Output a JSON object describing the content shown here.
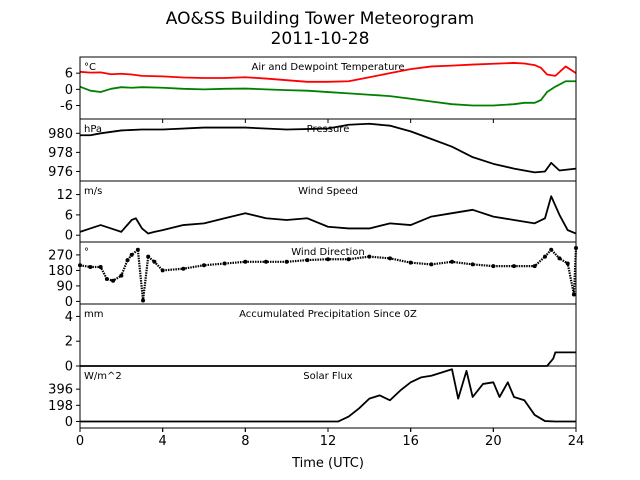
{
  "figure": {
    "title": "AO&SS Building Tower Meteorogram",
    "date": "2011-10-28",
    "xlabel": "Time (UTC)"
  },
  "chart_data": [
    {
      "type": "line",
      "title": "Air and Dewpoint Temperature",
      "unit": "°C",
      "xlim": [
        0,
        24
      ],
      "ylim": [
        -11,
        12
      ],
      "yticks": [
        -6,
        0,
        6
      ],
      "xticks": [
        0,
        4,
        8,
        12,
        16,
        20,
        24
      ],
      "x": [
        0,
        0.5,
        1,
        1.5,
        2,
        2.5,
        3,
        4,
        5,
        6,
        7,
        8,
        9,
        10,
        11,
        12,
        13,
        14,
        15,
        16,
        17,
        18,
        19,
        20,
        21,
        21.5,
        22,
        22.3,
        22.6,
        23,
        23.5,
        24
      ],
      "series": [
        {
          "name": "Air Temperature",
          "color": "#ff0000",
          "values": [
            6.5,
            6.2,
            6.3,
            5.6,
            5.8,
            5.5,
            5.0,
            4.8,
            4.4,
            4.2,
            4.2,
            4.5,
            4.0,
            3.4,
            2.8,
            2.8,
            3.0,
            4.5,
            6.0,
            7.5,
            8.5,
            8.8,
            9.2,
            9.5,
            9.8,
            9.6,
            9.0,
            8.0,
            5.5,
            5.0,
            8.5,
            6.0
          ]
        },
        {
          "name": "Dewpoint Temperature",
          "color": "#008000",
          "values": [
            1.0,
            -0.5,
            -1.0,
            0.2,
            0.8,
            0.6,
            0.8,
            0.6,
            0.2,
            0.0,
            0.2,
            0.3,
            0.0,
            -0.3,
            -0.5,
            -1.0,
            -1.5,
            -2.0,
            -2.5,
            -3.5,
            -4.5,
            -5.5,
            -6.0,
            -6.0,
            -5.5,
            -5.0,
            -5.0,
            -4.0,
            -1.0,
            1.0,
            3.0,
            3.0
          ]
        }
      ]
    },
    {
      "type": "line",
      "title": "Pressure",
      "unit": "hPa",
      "xlim": [
        0,
        24
      ],
      "ylim": [
        975,
        981.5
      ],
      "yticks": [
        976,
        978,
        980
      ],
      "x": [
        0,
        0.5,
        1,
        2,
        3,
        4,
        6,
        8,
        10,
        12,
        13,
        14,
        15,
        16,
        17,
        18,
        19,
        20,
        21,
        22,
        22.5,
        22.8,
        23.2,
        24
      ],
      "series": [
        {
          "name": "Pressure",
          "color": "#000000",
          "values": [
            979.8,
            979.8,
            980.0,
            980.3,
            980.4,
            980.4,
            980.6,
            980.6,
            980.4,
            980.5,
            980.9,
            981.0,
            980.8,
            980.2,
            979.4,
            978.6,
            977.5,
            976.8,
            976.3,
            975.9,
            976.0,
            976.9,
            976.1,
            976.3
          ]
        }
      ]
    },
    {
      "type": "line",
      "title": "Wind Speed",
      "unit": "m/s",
      "xlim": [
        0,
        24
      ],
      "ylim": [
        -2,
        16
      ],
      "yticks": [
        0,
        6,
        12
      ],
      "x": [
        0,
        0.5,
        1,
        1.5,
        2,
        2.5,
        2.7,
        3,
        3.3,
        3.6,
        4,
        5,
        6,
        7,
        8,
        9,
        10,
        11,
        12,
        13,
        14,
        15,
        16,
        17,
        18,
        19,
        20,
        21,
        22,
        22.5,
        22.8,
        23.2,
        23.6,
        24
      ],
      "series": [
        {
          "name": "Wind Speed",
          "color": "#000000",
          "values": [
            1.0,
            2.0,
            3.0,
            2.0,
            1.0,
            4.5,
            5.0,
            2.0,
            0.5,
            1.0,
            1.5,
            3.0,
            3.5,
            5.0,
            6.5,
            5.0,
            4.5,
            5.0,
            2.5,
            2.0,
            2.0,
            3.5,
            3.0,
            5.5,
            6.5,
            7.5,
            5.5,
            4.5,
            3.5,
            5.0,
            11.5,
            6.0,
            1.5,
            0.5
          ]
        }
      ]
    },
    {
      "type": "scatter",
      "title": "Wind Direction",
      "unit": "°",
      "xlim": [
        0,
        24
      ],
      "ylim": [
        -15,
        345
      ],
      "yticks": [
        0,
        90,
        180,
        270
      ],
      "x": [
        0,
        0.5,
        1,
        1.3,
        1.6,
        2,
        2.3,
        2.5,
        2.8,
        3.05,
        3.3,
        3.6,
        4,
        5,
        6,
        7,
        8,
        9,
        10,
        11,
        12,
        13,
        14,
        15,
        16,
        17,
        18,
        19,
        20,
        21,
        22,
        22.5,
        22.8,
        23.2,
        23.6,
        23.9,
        24
      ],
      "series": [
        {
          "name": "Wind Direction",
          "color": "#000000",
          "values": [
            210,
            200,
            200,
            130,
            120,
            150,
            240,
            270,
            300,
            5,
            260,
            230,
            180,
            190,
            210,
            220,
            230,
            230,
            230,
            240,
            245,
            245,
            260,
            250,
            225,
            215,
            230,
            215,
            205,
            205,
            205,
            260,
            300,
            250,
            220,
            40,
            310
          ]
        }
      ]
    },
    {
      "type": "line",
      "title": "Accumulated Precipitation Since 0Z",
      "unit": "mm",
      "xlim": [
        0,
        24
      ],
      "ylim": [
        0,
        5
      ],
      "yticks": [
        0,
        2,
        4
      ],
      "x": [
        0,
        22.6,
        22.9,
        23.0,
        24
      ],
      "series": [
        {
          "name": "Accumulated Precipitation",
          "color": "#000000",
          "values": [
            0,
            0,
            0.6,
            1.1,
            1.1
          ]
        }
      ]
    },
    {
      "type": "line",
      "title": "Solar Flux",
      "unit": "W/m^2",
      "xlim": [
        0,
        24
      ],
      "ylim": [
        -80,
        680
      ],
      "yticks": [
        0,
        198,
        396
      ],
      "x": [
        0,
        12.5,
        13,
        13.5,
        14,
        14.5,
        15,
        15.5,
        16,
        16.5,
        17,
        17.5,
        18,
        18.3,
        18.7,
        19,
        19.5,
        20,
        20.3,
        20.7,
        21,
        21.5,
        22,
        22.5,
        23,
        24
      ],
      "series": [
        {
          "name": "Solar Flux",
          "color": "#000000",
          "values": [
            0,
            0,
            60,
            160,
            280,
            320,
            260,
            380,
            480,
            540,
            560,
            600,
            640,
            280,
            620,
            300,
            460,
            480,
            300,
            480,
            300,
            260,
            80,
            5,
            0,
            0
          ]
        }
      ]
    }
  ]
}
